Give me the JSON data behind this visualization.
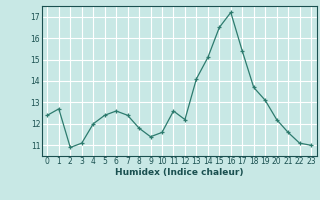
{
  "x": [
    0,
    1,
    2,
    3,
    4,
    5,
    6,
    7,
    8,
    9,
    10,
    11,
    12,
    13,
    14,
    15,
    16,
    17,
    18,
    19,
    20,
    21,
    22,
    23
  ],
  "y": [
    12.4,
    12.7,
    10.9,
    11.1,
    12.0,
    12.4,
    12.6,
    12.4,
    11.8,
    11.4,
    11.6,
    12.6,
    12.2,
    14.1,
    15.1,
    16.5,
    17.2,
    15.4,
    13.7,
    13.1,
    12.2,
    11.6,
    11.1,
    11.0
  ],
  "line_color": "#2d7b6e",
  "marker": "+",
  "marker_size": 3,
  "bg_color": "#c8e8e5",
  "grid_major_color": "#ffffff",
  "grid_minor_color": "#e8b8b8",
  "xlabel": "Humidex (Indice chaleur)",
  "xlabel_color": "#1a5050",
  "ylim": [
    10.5,
    17.5
  ],
  "xlim": [
    -0.5,
    23.5
  ],
  "yticks": [
    11,
    12,
    13,
    14,
    15,
    16,
    17
  ],
  "xticks": [
    0,
    1,
    2,
    3,
    4,
    5,
    6,
    7,
    8,
    9,
    10,
    11,
    12,
    13,
    14,
    15,
    16,
    17,
    18,
    19,
    20,
    21,
    22,
    23
  ],
  "tick_color": "#1a5050",
  "axis_color": "#1a5050",
  "tick_fontsize": 5.5,
  "xlabel_fontsize": 6.5,
  "xlabel_fontweight": "bold"
}
